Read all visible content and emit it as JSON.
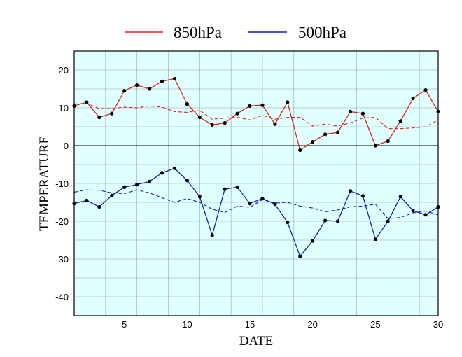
{
  "chart_data": {
    "type": "line",
    "xlabel": "DATE",
    "ylabel": "TEMPERATURE",
    "xlim": [
      1,
      30
    ],
    "ylim": [
      -45,
      25
    ],
    "xticks": [
      5,
      10,
      15,
      20,
      25,
      30
    ],
    "yticks": [
      -40,
      -30,
      -20,
      -10,
      0,
      10,
      20
    ],
    "grid": true,
    "legend_position": "top",
    "background": "#e0ffff",
    "x": [
      1,
      2,
      3,
      4,
      5,
      6,
      7,
      8,
      9,
      10,
      11,
      12,
      13,
      14,
      15,
      16,
      17,
      18,
      19,
      20,
      21,
      22,
      23,
      24,
      25,
      26,
      27,
      28,
      29,
      30
    ],
    "series": [
      {
        "name": "850hPa",
        "color": "#e02020",
        "values": [
          10.5,
          11.5,
          7.5,
          8.5,
          14.5,
          16,
          15,
          17,
          17.7,
          11,
          7.5,
          5.5,
          6,
          8.5,
          10.5,
          10.7,
          5.7,
          11.5,
          -1.2,
          1,
          3,
          3.5,
          9,
          8.5,
          0,
          1.2,
          6.5,
          12.5,
          14.7,
          9
        ],
        "climatology": [
          11,
          11.2,
          9.8,
          9.8,
          10.2,
          10,
          10.5,
          10.2,
          9,
          8.8,
          9.3,
          7,
          7.3,
          7.5,
          6.8,
          8,
          7,
          7.5,
          7.5,
          5.2,
          5.7,
          5.2,
          6,
          7.3,
          7.5,
          4.5,
          4.5,
          4.7,
          5,
          6.8
        ]
      },
      {
        "name": "500hPa",
        "color": "#1020c0",
        "values": [
          -15.3,
          -14.5,
          -16.2,
          -13.2,
          -11,
          -10.3,
          -9.5,
          -7.2,
          -6,
          -9.2,
          -13.5,
          -23.7,
          -11.5,
          -11,
          -15.3,
          -14,
          -15.5,
          -20.3,
          -29.3,
          -25.2,
          -19.8,
          -20,
          -12,
          -13.3,
          -24.8,
          -20,
          -13.5,
          -17.2,
          -18.3,
          -16.2
        ],
        "climatology": [
          -12.3,
          -11.7,
          -11.8,
          -12.5,
          -12.7,
          -11.7,
          -12.5,
          -13.8,
          -15,
          -14,
          -15,
          -16.8,
          -17.7,
          -16,
          -16.3,
          -14.3,
          -15.2,
          -15,
          -16,
          -16.5,
          -17.5,
          -17,
          -16.2,
          -16,
          -15.5,
          -19.3,
          -19,
          -17.8,
          -17.3,
          -18.3
        ]
      }
    ]
  }
}
